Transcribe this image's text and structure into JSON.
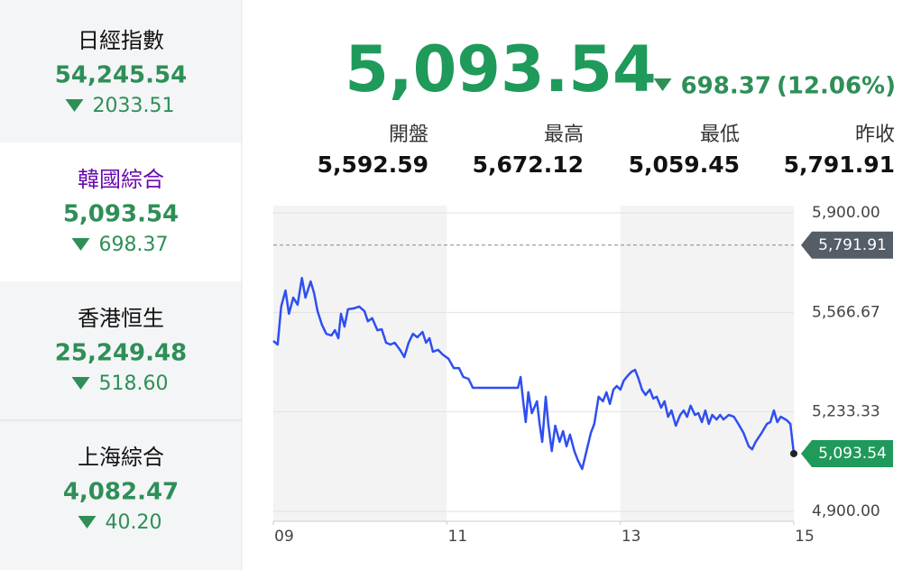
{
  "sidebar": [
    {
      "name": "日經指數",
      "value": "54,245.54",
      "change": "2033.51"
    },
    {
      "name": "韓國綜合",
      "value": "5,093.54",
      "change": "698.37"
    },
    {
      "name": "香港恒生",
      "value": "25,249.48",
      "change": "518.60"
    },
    {
      "name": "上海綜合",
      "value": "4,082.47",
      "change": "40.20"
    }
  ],
  "header": {
    "value": "5,093.54",
    "change": "698.37",
    "change_pct": "(12.06%)"
  },
  "stats": [
    {
      "label": "開盤",
      "value": "5,592.59"
    },
    {
      "label": "最高",
      "value": "5,672.12"
    },
    {
      "label": "最低",
      "value": "5,059.45"
    },
    {
      "label": "昨收",
      "value": "5,791.91"
    }
  ],
  "chart_data": {
    "type": "line",
    "x": [
      9.0,
      9.05,
      9.09,
      9.14,
      9.18,
      9.23,
      9.28,
      9.33,
      9.37,
      9.43,
      9.47,
      9.51,
      9.56,
      9.61,
      9.67,
      9.71,
      9.75,
      9.78,
      9.82,
      9.86,
      9.93,
      9.99,
      10.05,
      10.09,
      10.14,
      10.2,
      10.25,
      10.3,
      10.35,
      10.4,
      10.46,
      10.51,
      10.56,
      10.61,
      10.66,
      10.72,
      10.76,
      10.8,
      10.84,
      10.9,
      10.95,
      11.02,
      11.08,
      11.14,
      11.19,
      11.25,
      11.3,
      11.82,
      11.85,
      11.88,
      11.91,
      11.94,
      11.98,
      12.04,
      12.07,
      12.1,
      12.14,
      12.17,
      12.21,
      12.25,
      12.3,
      12.34,
      12.38,
      12.42,
      12.47,
      12.51,
      12.56,
      12.61,
      12.66,
      12.7,
      12.75,
      12.8,
      12.84,
      12.88,
      12.92,
      12.96,
      13.0,
      13.04,
      13.09,
      13.13,
      13.17,
      13.21,
      13.25,
      13.29,
      13.34,
      13.38,
      13.42,
      13.47,
      13.51,
      13.55,
      13.59,
      13.64,
      13.69,
      13.73,
      13.77,
      13.81,
      13.86,
      13.9,
      13.94,
      13.98,
      14.02,
      14.06,
      14.11,
      14.15,
      14.19,
      14.25,
      14.31,
      14.36,
      14.42,
      14.48,
      14.52,
      14.56,
      14.63,
      14.69,
      14.73,
      14.77,
      14.81,
      14.85,
      14.92,
      14.96,
      15.0
    ],
    "series": [
      {
        "color": "#2f4ff0",
        "values": [
          5471,
          5459,
          5586,
          5640,
          5562,
          5616,
          5592,
          5682,
          5616,
          5670,
          5631,
          5571,
          5525,
          5495,
          5489,
          5507,
          5480,
          5562,
          5519,
          5577,
          5580,
          5586,
          5571,
          5537,
          5547,
          5507,
          5510,
          5465,
          5459,
          5465,
          5441,
          5417,
          5465,
          5495,
          5483,
          5501,
          5465,
          5480,
          5435,
          5441,
          5426,
          5411,
          5380,
          5380,
          5350,
          5344,
          5314,
          5314,
          5350,
          5269,
          5199,
          5299,
          5229,
          5269,
          5193,
          5133,
          5284,
          5193,
          5102,
          5187,
          5133,
          5169,
          5118,
          5157,
          5102,
          5072,
          5042,
          5102,
          5163,
          5193,
          5284,
          5269,
          5299,
          5260,
          5308,
          5320,
          5308,
          5338,
          5356,
          5368,
          5374,
          5344,
          5308,
          5290,
          5308,
          5278,
          5284,
          5247,
          5269,
          5217,
          5238,
          5187,
          5223,
          5238,
          5217,
          5254,
          5223,
          5229,
          5199,
          5238,
          5193,
          5223,
          5208,
          5223,
          5208,
          5223,
          5217,
          5193,
          5163,
          5118,
          5108,
          5133,
          5163,
          5193,
          5199,
          5238,
          5199,
          5217,
          5205,
          5193,
          5093.54
        ]
      }
    ],
    "xlim": [
      9,
      15
    ],
    "xticks": [
      {
        "value": 9,
        "label": "09"
      },
      11,
      13,
      15
    ],
    "ylim": [
      4900,
      5900
    ],
    "yticks": [
      {
        "value": 4900,
        "label": "4,900.00"
      },
      {
        "value": 5233.33,
        "label": "5,233.33"
      },
      {
        "value": 5566.67,
        "label": "5,566.67"
      },
      {
        "value": 5900,
        "label": "5,900.00"
      }
    ],
    "reference": {
      "value": 5791.91,
      "label": "5,791.91"
    },
    "grid": true
  }
}
